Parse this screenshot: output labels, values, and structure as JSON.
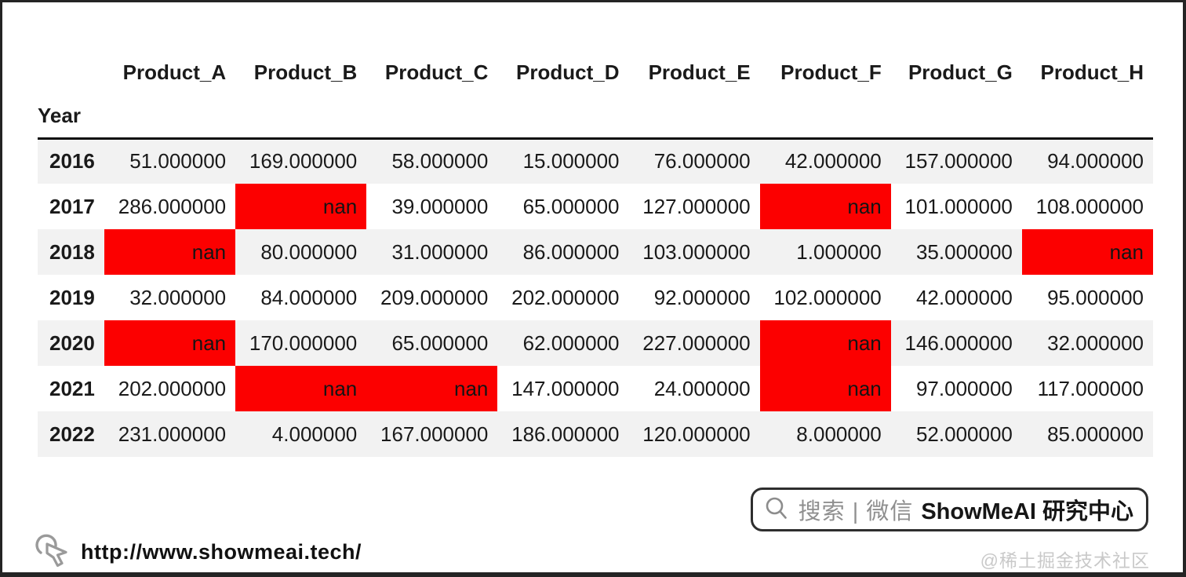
{
  "chart_data": {
    "type": "table",
    "title": "",
    "index_label": "Year",
    "columns": [
      "Product_A",
      "Product_B",
      "Product_C",
      "Product_D",
      "Product_E",
      "Product_F",
      "Product_G",
      "Product_H"
    ],
    "rows": [
      {
        "year": "2016",
        "values": [
          "51.000000",
          "169.000000",
          "58.000000",
          "15.000000",
          "76.000000",
          "42.000000",
          "157.000000",
          "94.000000"
        ]
      },
      {
        "year": "2017",
        "values": [
          "286.000000",
          "nan",
          "39.000000",
          "65.000000",
          "127.000000",
          "nan",
          "101.000000",
          "108.000000"
        ]
      },
      {
        "year": "2018",
        "values": [
          "nan",
          "80.000000",
          "31.000000",
          "86.000000",
          "103.000000",
          "1.000000",
          "35.000000",
          "nan"
        ]
      },
      {
        "year": "2019",
        "values": [
          "32.000000",
          "84.000000",
          "209.000000",
          "202.000000",
          "92.000000",
          "102.000000",
          "42.000000",
          "95.000000"
        ]
      },
      {
        "year": "2020",
        "values": [
          "nan",
          "170.000000",
          "65.000000",
          "62.000000",
          "227.000000",
          "nan",
          "146.000000",
          "32.000000"
        ]
      },
      {
        "year": "2021",
        "values": [
          "202.000000",
          "nan",
          "nan",
          "147.000000",
          "24.000000",
          "nan",
          "97.000000",
          "117.000000"
        ]
      },
      {
        "year": "2022",
        "values": [
          "231.000000",
          "4.000000",
          "167.000000",
          "186.000000",
          "120.000000",
          "8.000000",
          "52.000000",
          "85.000000"
        ]
      }
    ],
    "nan_marker": "nan",
    "layout": {
      "striped_rows": true,
      "header_rule": true,
      "grid": false
    }
  },
  "badge": {
    "search_text": "搜索 | 微信",
    "brand": "ShowMeAI 研究中心"
  },
  "footer": {
    "url": "http://www.showmeai.tech/",
    "community": "@稀土掘金技术社区"
  },
  "colors": {
    "nan_bg": "#fc0000",
    "stripe": "#f2f2f2",
    "rule": "#0d0d0d",
    "text": "#1a1a1a",
    "muted_gray": "#8f8f8f",
    "faint_gray": "#c9c9c9"
  }
}
